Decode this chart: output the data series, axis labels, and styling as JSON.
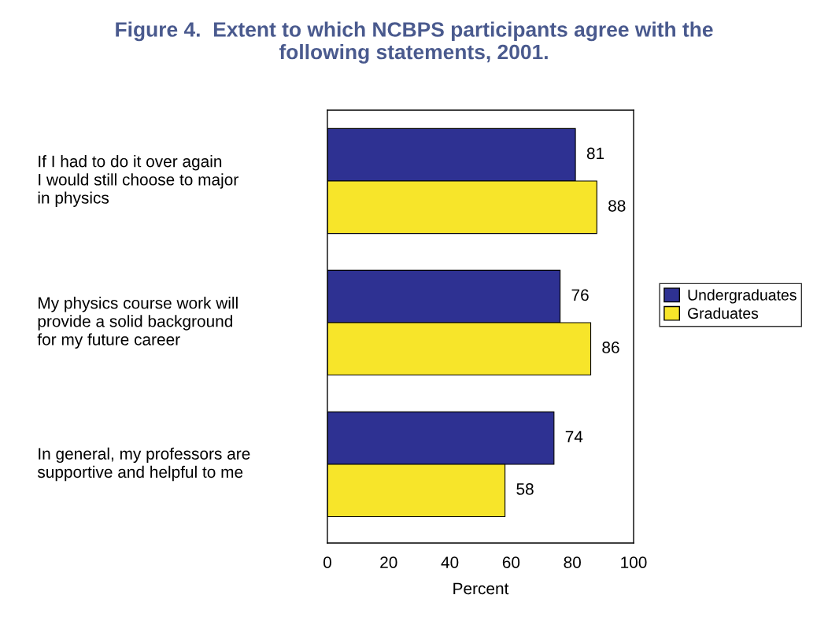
{
  "chart_data": {
    "type": "bar",
    "orientation": "horizontal",
    "title": "Figure 4.  Extent to which NCBPS participants agree with the\nfollowing statements, 2001.",
    "xlabel": "Percent",
    "categories": [
      "If I had to do it over again\nI would still choose to major\nin physics",
      "My physics course work will\nprovide a solid background\nfor my future career",
      "In general, my professors are\nsupportive and helpful to me"
    ],
    "series": [
      {
        "name": "Undergraduates",
        "color": "#2e3192",
        "values": [
          81,
          76,
          74
        ]
      },
      {
        "name": "Graduates",
        "color": "#f7e52a",
        "values": [
          88,
          86,
          58
        ]
      }
    ],
    "xlim": [
      0,
      100
    ],
    "xticks": [
      0,
      20,
      40,
      60,
      80,
      100
    ],
    "data_labels": true,
    "grid": false,
    "legend": "right"
  }
}
